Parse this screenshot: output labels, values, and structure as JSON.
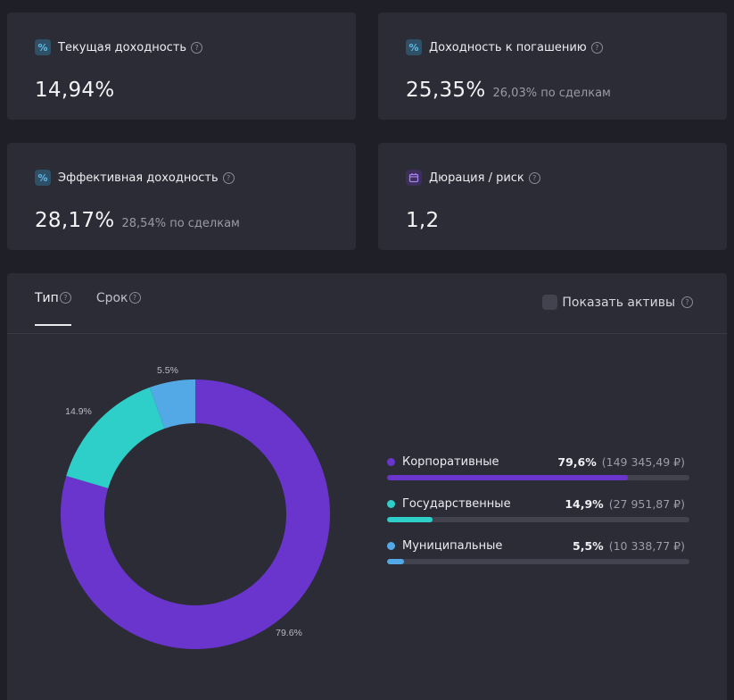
{
  "cards": [
    {
      "title": "Текущая доходность",
      "value": "14,94%",
      "sub": "",
      "icon": "percent-icon"
    },
    {
      "title": "Доходность к погашению",
      "value": "25,35%",
      "sub": "26,03% по сделкам",
      "icon": "percent-icon"
    },
    {
      "title": "Эффективная доходность",
      "value": "28,17%",
      "sub": "28,54% по сделкам",
      "icon": "percent-icon"
    },
    {
      "title": "Дюрация / риск",
      "value": "1,2",
      "sub": "",
      "icon": "calendar-icon"
    }
  ],
  "help_glyph": "?",
  "percent_glyph": "%",
  "tabs": [
    {
      "label": "Тип",
      "active": true
    },
    {
      "label": "Срок",
      "active": false
    }
  ],
  "show_assets_label": "Показать активы",
  "chart_data": {
    "type": "pie",
    "variant": "donut",
    "slices": [
      {
        "label": "Корпоративные",
        "value": 79.6,
        "label_text": "79.6%",
        "color": "#6a35cc"
      },
      {
        "label": "Государственные",
        "value": 14.9,
        "label_text": "14.9%",
        "color": "#2ecfc9"
      },
      {
        "label": "Муниципальные",
        "value": 5.5,
        "label_text": "5.5%",
        "color": "#53a9e6"
      }
    ]
  },
  "legend": [
    {
      "label": "Корпоративные",
      "pct": "79,6%",
      "amount": "(149 345,49 ₽)",
      "share": 0.796,
      "color": "#6a35cc"
    },
    {
      "label": "Государственные",
      "pct": "14,9%",
      "amount": "(27 951,87 ₽)",
      "share": 0.149,
      "color": "#2ecfc9"
    },
    {
      "label": "Муниципальные",
      "pct": "5,5%",
      "amount": "(10 338,77 ₽)",
      "share": 0.055,
      "color": "#53a9e6"
    }
  ]
}
